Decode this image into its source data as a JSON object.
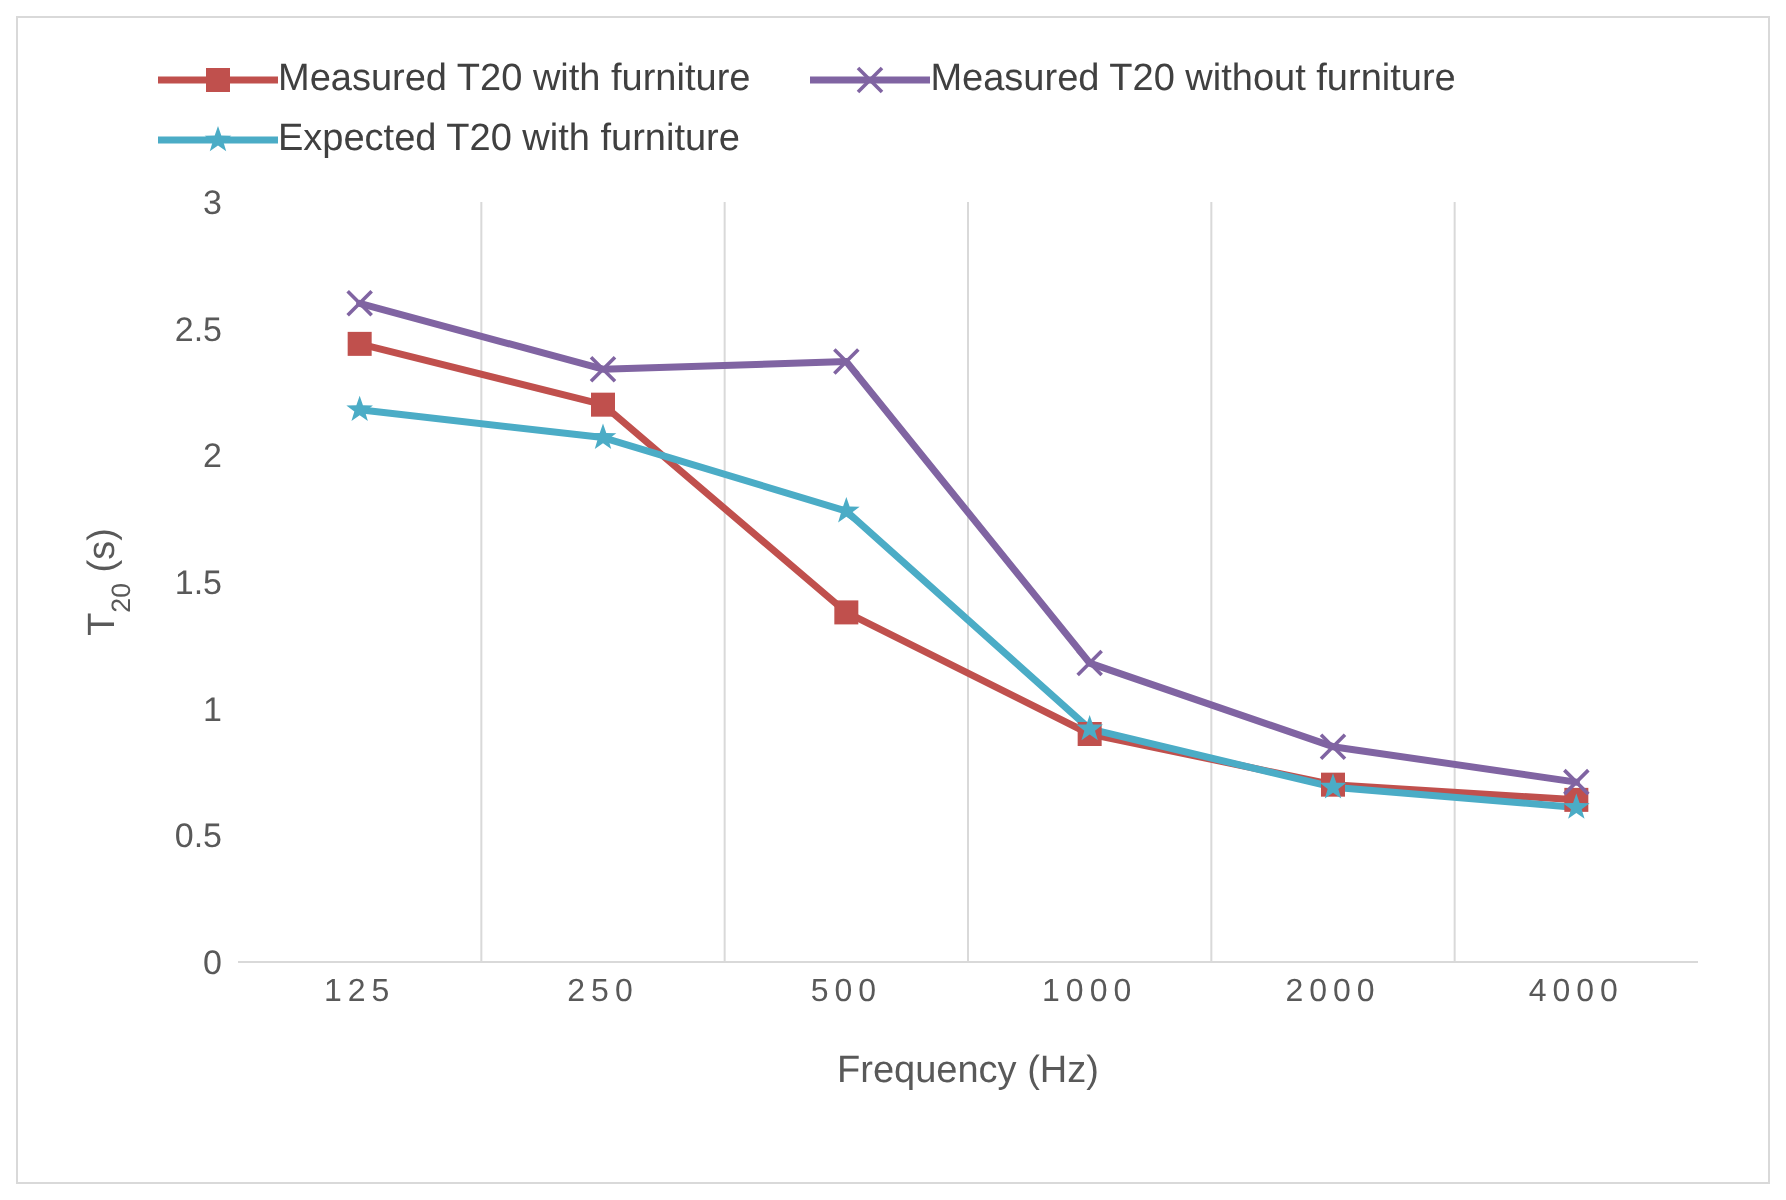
{
  "chart_data": {
    "type": "line",
    "xlabel": "Frequency (Hz)",
    "ylabel": "T$_{20}$ (s)",
    "categories": [
      "125",
      "250",
      "500",
      "1000",
      "2000",
      "4000"
    ],
    "ylim": [
      0,
      3
    ],
    "yticks": [
      0,
      0.5,
      1,
      1.5,
      2,
      2.5,
      3
    ],
    "grid": "x",
    "legend": "top",
    "line_style": "solid",
    "series": [
      {
        "name": "Measured T20 with furniture",
        "color": "#c0504d",
        "marker": "square",
        "values": [
          2.44,
          2.2,
          1.38,
          0.9,
          0.7,
          0.64
        ]
      },
      {
        "name": "Measured T20 without furniture",
        "color": "#8064a2",
        "marker": "cross",
        "values": [
          2.6,
          2.34,
          2.37,
          1.18,
          0.85,
          0.71
        ]
      },
      {
        "name": "Expected T20 with furniture",
        "color": "#4bacc6",
        "marker": "star",
        "values": [
          2.18,
          2.07,
          1.78,
          0.92,
          0.69,
          0.61
        ]
      }
    ]
  }
}
